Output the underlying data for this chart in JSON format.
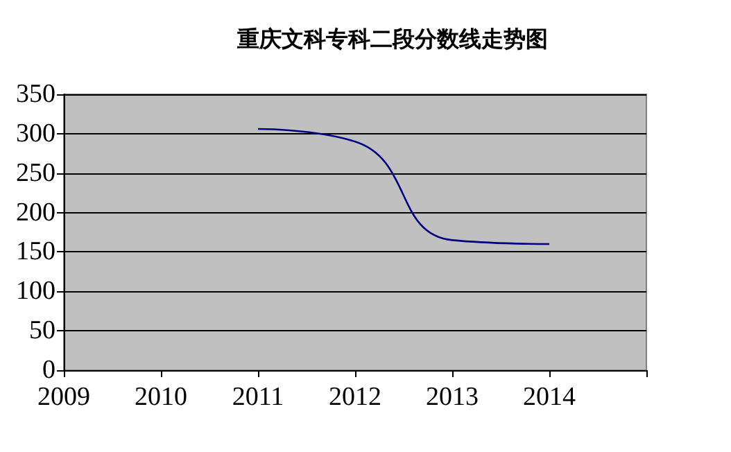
{
  "chart_data": {
    "type": "line",
    "title": "重庆文科专科二段分数线走势图",
    "x": [
      2011,
      2012,
      2013,
      2014
    ],
    "series": [
      {
        "color": "#000080",
        "values": [
          306,
          290,
          165,
          160
        ]
      }
    ],
    "xlim": [
      2009,
      2015
    ],
    "xticks": [
      2009,
      2010,
      2011,
      2012,
      2013,
      2014,
      {
        "value": 2015,
        "label": null
      }
    ],
    "ylim": [
      0,
      350
    ],
    "yticks": [
      0,
      50,
      100,
      150,
      200,
      250,
      300,
      350
    ],
    "grid": "y",
    "marker": "none",
    "line_style": "solid"
  }
}
